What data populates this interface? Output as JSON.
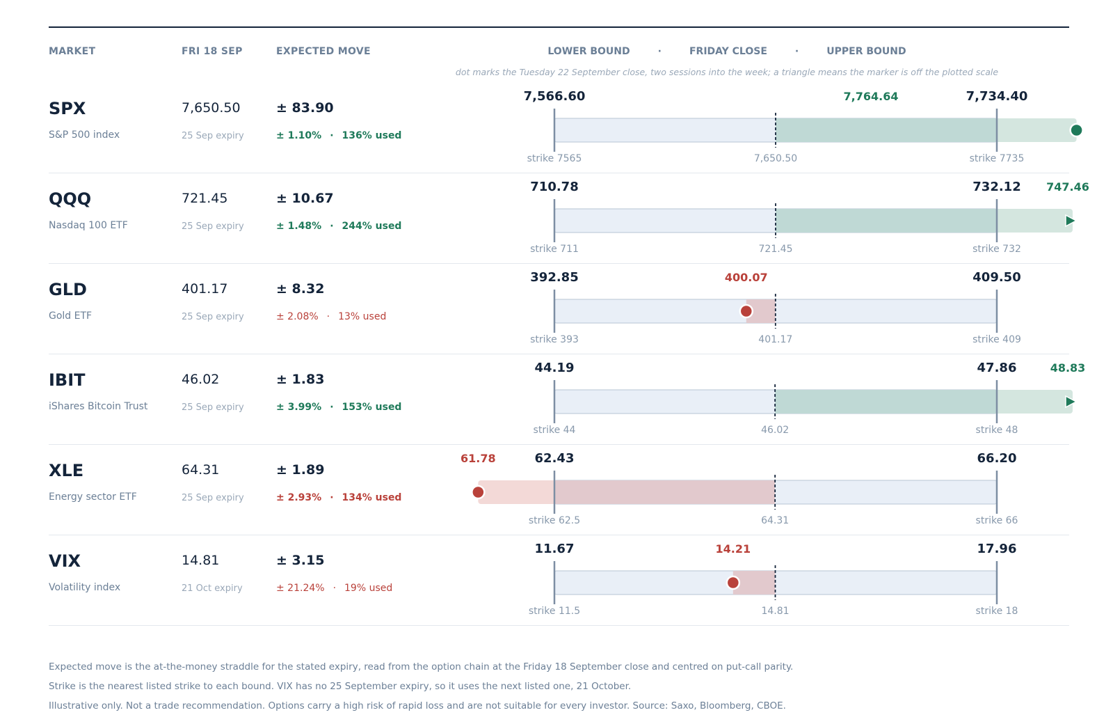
{
  "headers": {
    "market": "MARKET",
    "date": "FRI 18 SEP",
    "expected_move": "EXPECTED MOVE",
    "lower_bound": "LOWER BOUND",
    "friday_close": "FRIDAY CLOSE",
    "upper_bound": "UPPER BOUND",
    "separator": "·",
    "note": "dot marks the Tuesday 22 September close, two sessions into the week; a triangle means the marker is off the plotted scale"
  },
  "colors": {
    "up": "#1f7a5a",
    "down": "#b9413a",
    "ink": "#14243a",
    "muted": "#6b7f96",
    "range_fill": "#e9eff7",
    "range_stroke": "#c3cfdc",
    "up_fill": "#bfd9d5",
    "up_overflow": "#d4e6df",
    "down_fill": "#e2c9cd",
    "down_overflow": "#f3d9d7",
    "axis": "#7d8ea3"
  },
  "chart_data": {
    "type": "range",
    "rows": [
      {
        "ticker": "SPX",
        "name": "S&P 500 index",
        "close": 7650.5,
        "close_label": "7,650.50",
        "expiry": "25 Sep expiry",
        "move": "± 83.90",
        "move_pct": "± 1.10%",
        "used": "136% used",
        "lower": 7566.6,
        "lower_label": "7,566.60",
        "upper": 7734.4,
        "upper_label": "7,734.40",
        "strike_lower": "strike 7565",
        "strike_upper": "strike 7735",
        "tuesday": 7764.64,
        "tuesday_label": "7,764.64",
        "direction": "up",
        "marker": "dot"
      },
      {
        "ticker": "QQQ",
        "name": "Nasdaq 100 ETF",
        "close": 721.45,
        "close_label": "721.45",
        "expiry": "25 Sep expiry",
        "move": "± 10.67",
        "move_pct": "± 1.48%",
        "used": "244% used",
        "lower": 710.78,
        "lower_label": "710.78",
        "upper": 732.12,
        "upper_label": "732.12",
        "strike_lower": "strike 711",
        "strike_upper": "strike 732",
        "tuesday": 747.46,
        "tuesday_label": "747.46",
        "direction": "up",
        "marker": "triangle"
      },
      {
        "ticker": "GLD",
        "name": "Gold ETF",
        "close": 401.17,
        "close_label": "401.17",
        "expiry": "25 Sep expiry",
        "move": "± 8.32",
        "move_pct": "± 2.08%",
        "used": "13% used",
        "lower": 392.85,
        "lower_label": "392.85",
        "upper": 409.5,
        "upper_label": "409.50",
        "strike_lower": "strike 393",
        "strike_upper": "strike 409",
        "tuesday": 400.07,
        "tuesday_label": "400.07",
        "direction": "down",
        "marker": "dot"
      },
      {
        "ticker": "IBIT",
        "name": "iShares Bitcoin Trust",
        "close": 46.02,
        "close_label": "46.02",
        "expiry": "25 Sep expiry",
        "move": "± 1.83",
        "move_pct": "± 3.99%",
        "used": "153% used",
        "lower": 44.19,
        "lower_label": "44.19",
        "upper": 47.86,
        "upper_label": "47.86",
        "strike_lower": "strike 44",
        "strike_upper": "strike 48",
        "tuesday": 48.83,
        "tuesday_label": "48.83",
        "direction": "up",
        "marker": "triangle"
      },
      {
        "ticker": "XLE",
        "name": "Energy sector ETF",
        "close": 64.31,
        "close_label": "64.31",
        "expiry": "25 Sep expiry",
        "move": "± 1.89",
        "move_pct": "± 2.93%",
        "used": "134% used",
        "lower": 62.43,
        "lower_label": "62.43",
        "upper": 66.2,
        "upper_label": "66.20",
        "strike_lower": "strike 62.5",
        "strike_upper": "strike 66",
        "tuesday": 61.78,
        "tuesday_label": "61.78",
        "direction": "down",
        "marker": "dot"
      },
      {
        "ticker": "VIX",
        "name": "Volatility index",
        "close": 14.81,
        "close_label": "14.81",
        "expiry": "21 Oct expiry",
        "move": "± 3.15",
        "move_pct": "± 21.24%",
        "used": "19% used",
        "lower": 11.67,
        "lower_label": "11.67",
        "upper": 17.96,
        "upper_label": "17.96",
        "strike_lower": "strike 11.5",
        "strike_upper": "strike 18",
        "tuesday": 14.21,
        "tuesday_label": "14.21",
        "direction": "down",
        "marker": "dot"
      }
    ]
  },
  "footer": {
    "line1": "Expected move is the at-the-money straddle for the stated expiry, read from the option chain at the Friday 18 September close and centred on put-call parity.",
    "line2": "Strike is the nearest listed strike to each bound. VIX has no 25 September expiry, so it uses the next listed one, 21 October.",
    "line3": "Illustrative only. Not a trade recommendation. Options carry a high risk of rapid loss and are not suitable for every investor. Source: Saxo, Bloomberg, CBOE."
  }
}
